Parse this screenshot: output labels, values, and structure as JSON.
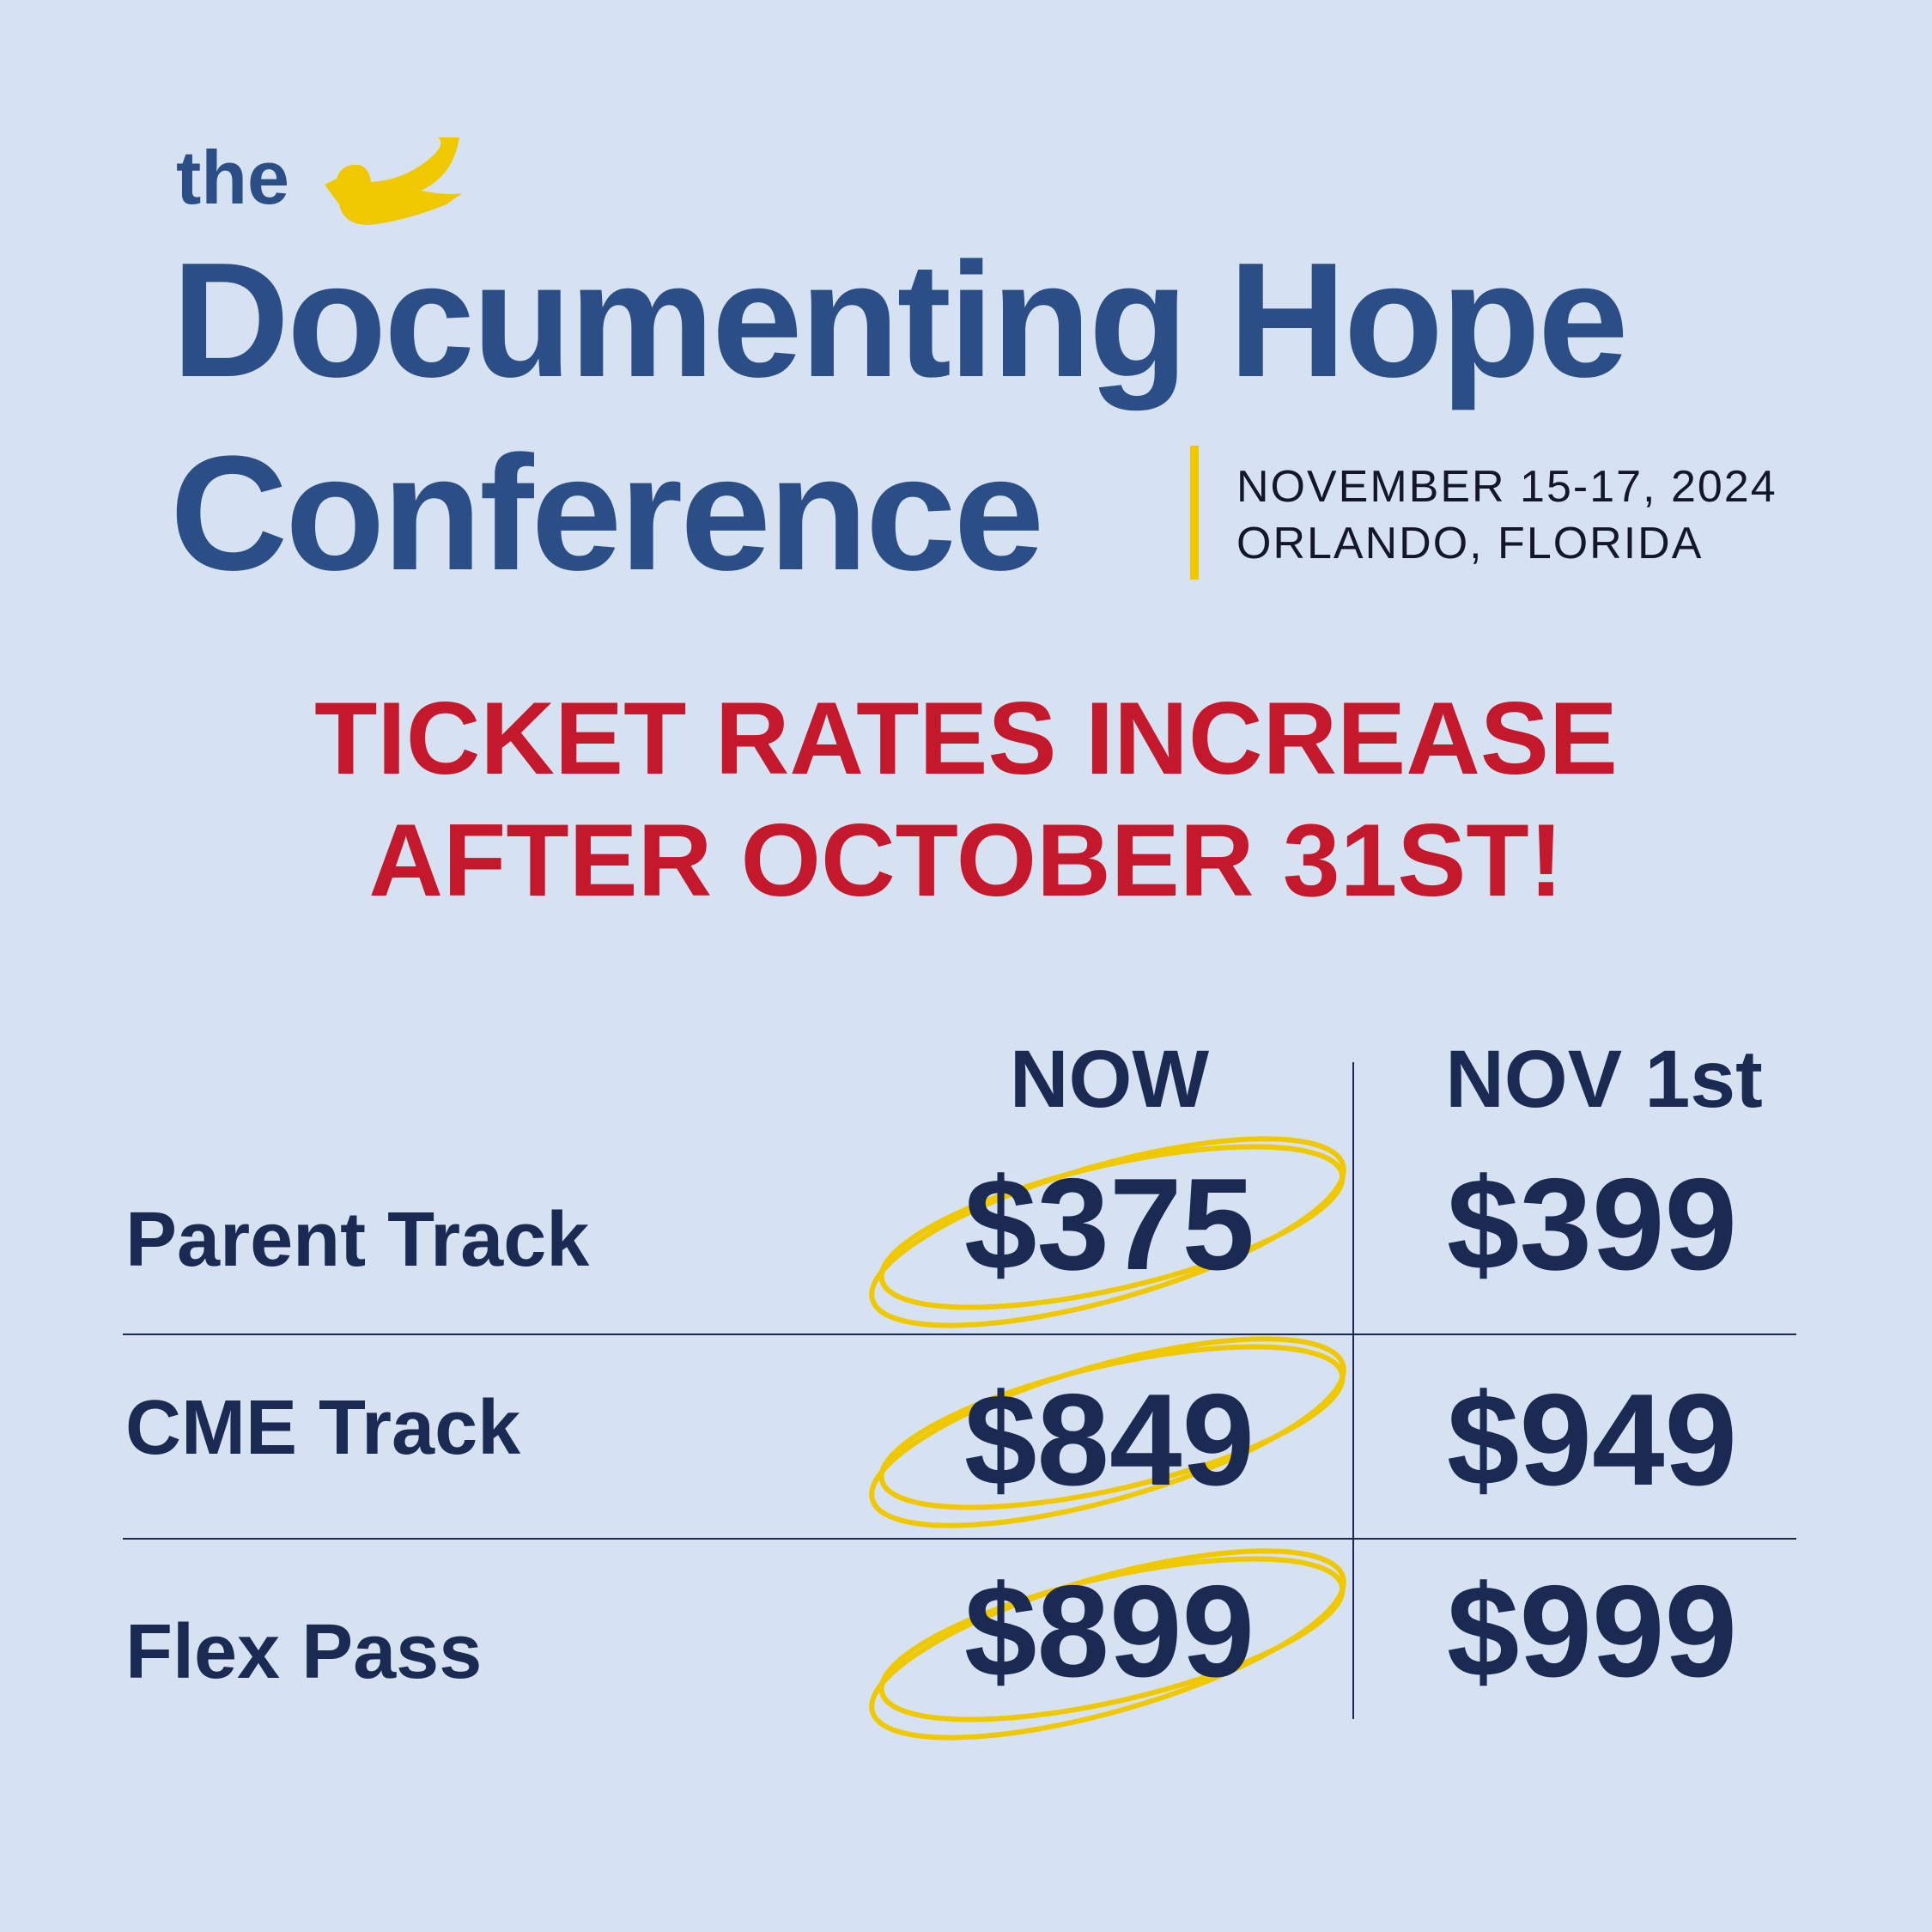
{
  "header": {
    "prefix": "the",
    "title_line1": "Documenting Hope",
    "title_line2": "Conference"
  },
  "event": {
    "date": "NOVEMBER 15-17, 2024",
    "location": "ORLANDO, FLORIDA"
  },
  "announcement": {
    "line1": "TICKET RATES INCREASE",
    "line2": "AFTER OCTOBER 31ST!"
  },
  "table": {
    "columns": [
      "NOW",
      "NOV 1st"
    ],
    "rows": [
      [
        "Parent Track",
        "$375",
        "$399"
      ],
      [
        "CME Track",
        "$849",
        "$949"
      ],
      [
        "Flex Pass",
        "$899",
        "$999"
      ]
    ]
  }
}
